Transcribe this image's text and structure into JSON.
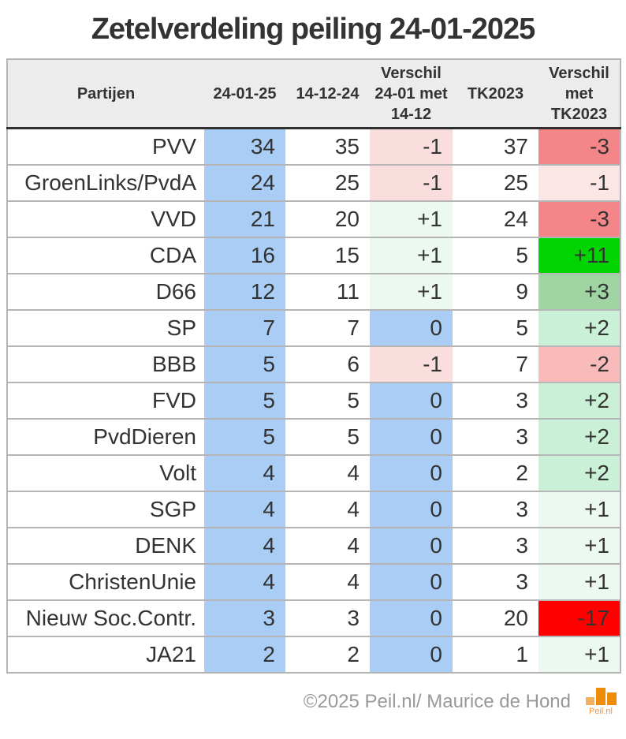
{
  "page": {
    "title": "Zetelverdeling peiling 24-01-2025"
  },
  "colors": {
    "blue": "#a9cdf4",
    "pos1": "#ecf9f0",
    "pos2": "#caf1d7",
    "pos3": "#a0d5a3",
    "pos_big": "#02d402",
    "neg1": "#fadddd",
    "neg1_faint": "#fbe5e5",
    "neg2": "#f9baba",
    "neg3": "#f48689",
    "neg_big": "#ff0000",
    "header_bg": "#ececec",
    "logo_orange_dark": "#ee8d09",
    "logo_orange_light": "#f3b15f"
  },
  "table": {
    "headers": {
      "party": "Partijen",
      "cur": "24-01-25",
      "prev": "14-12-24",
      "diff1": "Verschil\n24-01 met\n14-12",
      "tk": "TK2023",
      "diff2": "Verschil\nmet\nTK2023"
    },
    "rows": [
      {
        "party": "PVV",
        "p2401": "34",
        "p1412": "35",
        "d1": "-1",
        "d1bg": "neg1",
        "tk": "37",
        "d2": "-3",
        "d2bg": "neg3"
      },
      {
        "party": "GroenLinks/PvdA",
        "p2401": "24",
        "p1412": "25",
        "d1": "-1",
        "d1bg": "neg1",
        "tk": "25",
        "d2": "-1",
        "d2bg": "neg1_faint"
      },
      {
        "party": "VVD",
        "p2401": "21",
        "p1412": "20",
        "d1": "+1",
        "d1bg": "pos1",
        "tk": "24",
        "d2": "-3",
        "d2bg": "neg3"
      },
      {
        "party": "CDA",
        "p2401": "16",
        "p1412": "15",
        "d1": "+1",
        "d1bg": "pos1",
        "tk": "5",
        "d2": "+11",
        "d2bg": "pos_big"
      },
      {
        "party": "D66",
        "p2401": "12",
        "p1412": "11",
        "d1": "+1",
        "d1bg": "pos1",
        "tk": "9",
        "d2": "+3",
        "d2bg": "pos3"
      },
      {
        "party": "SP",
        "p2401": "7",
        "p1412": "7",
        "d1": "0",
        "d1bg": "blue",
        "tk": "5",
        "d2": "+2",
        "d2bg": "pos2"
      },
      {
        "party": "BBB",
        "p2401": "5",
        "p1412": "6",
        "d1": "-1",
        "d1bg": "neg1",
        "tk": "7",
        "d2": "-2",
        "d2bg": "neg2"
      },
      {
        "party": "FVD",
        "p2401": "5",
        "p1412": "5",
        "d1": "0",
        "d1bg": "blue",
        "tk": "3",
        "d2": "+2",
        "d2bg": "pos2"
      },
      {
        "party": "PvdDieren",
        "p2401": "5",
        "p1412": "5",
        "d1": "0",
        "d1bg": "blue",
        "tk": "3",
        "d2": "+2",
        "d2bg": "pos2"
      },
      {
        "party": "Volt",
        "p2401": "4",
        "p1412": "4",
        "d1": "0",
        "d1bg": "blue",
        "tk": "2",
        "d2": "+2",
        "d2bg": "pos2"
      },
      {
        "party": "SGP",
        "p2401": "4",
        "p1412": "4",
        "d1": "0",
        "d1bg": "blue",
        "tk": "3",
        "d2": "+1",
        "d2bg": "pos1"
      },
      {
        "party": "DENK",
        "p2401": "4",
        "p1412": "4",
        "d1": "0",
        "d1bg": "blue",
        "tk": "3",
        "d2": "+1",
        "d2bg": "pos1"
      },
      {
        "party": "ChristenUnie",
        "p2401": "4",
        "p1412": "4",
        "d1": "0",
        "d1bg": "blue",
        "tk": "3",
        "d2": "+1",
        "d2bg": "pos1"
      },
      {
        "party": "Nieuw Soc.Contr.",
        "p2401": "3",
        "p1412": "3",
        "d1": "0",
        "d1bg": "blue",
        "tk": "20",
        "d2": "-17",
        "d2bg": "neg_big"
      },
      {
        "party": "JA21",
        "p2401": "2",
        "p1412": "2",
        "d1": "0",
        "d1bg": "blue",
        "tk": "1",
        "d2": "+1",
        "d2bg": "pos1"
      }
    ]
  },
  "footer": {
    "copyright": "©2025 Peil.nl/ Maurice de Hond",
    "logo_text": "Peil.nl"
  },
  "chart_data": {
    "type": "table",
    "title": "Zetelverdeling peiling 24-01-2025",
    "columns": [
      "Partijen",
      "24-01-25",
      "14-12-24",
      "Verschil 24-01 met 14-12",
      "TK2023",
      "Verschil met TK2023"
    ],
    "rows": [
      [
        "PVV",
        34,
        35,
        -1,
        37,
        -3
      ],
      [
        "GroenLinks/PvdA",
        24,
        25,
        -1,
        25,
        -1
      ],
      [
        "VVD",
        21,
        20,
        1,
        24,
        -3
      ],
      [
        "CDA",
        16,
        15,
        1,
        5,
        11
      ],
      [
        "D66",
        12,
        11,
        1,
        9,
        3
      ],
      [
        "SP",
        7,
        7,
        0,
        5,
        2
      ],
      [
        "BBB",
        5,
        6,
        -1,
        7,
        -2
      ],
      [
        "FVD",
        5,
        5,
        0,
        3,
        2
      ],
      [
        "PvdDieren",
        5,
        5,
        0,
        3,
        2
      ],
      [
        "Volt",
        4,
        4,
        0,
        2,
        2
      ],
      [
        "SGP",
        4,
        4,
        0,
        3,
        1
      ],
      [
        "DENK",
        4,
        4,
        0,
        3,
        1
      ],
      [
        "ChristenUnie",
        4,
        4,
        0,
        3,
        1
      ],
      [
        "Nieuw Soc.Contr.",
        3,
        3,
        0,
        20,
        -17
      ],
      [
        "JA21",
        2,
        2,
        0,
        1,
        1
      ]
    ]
  }
}
